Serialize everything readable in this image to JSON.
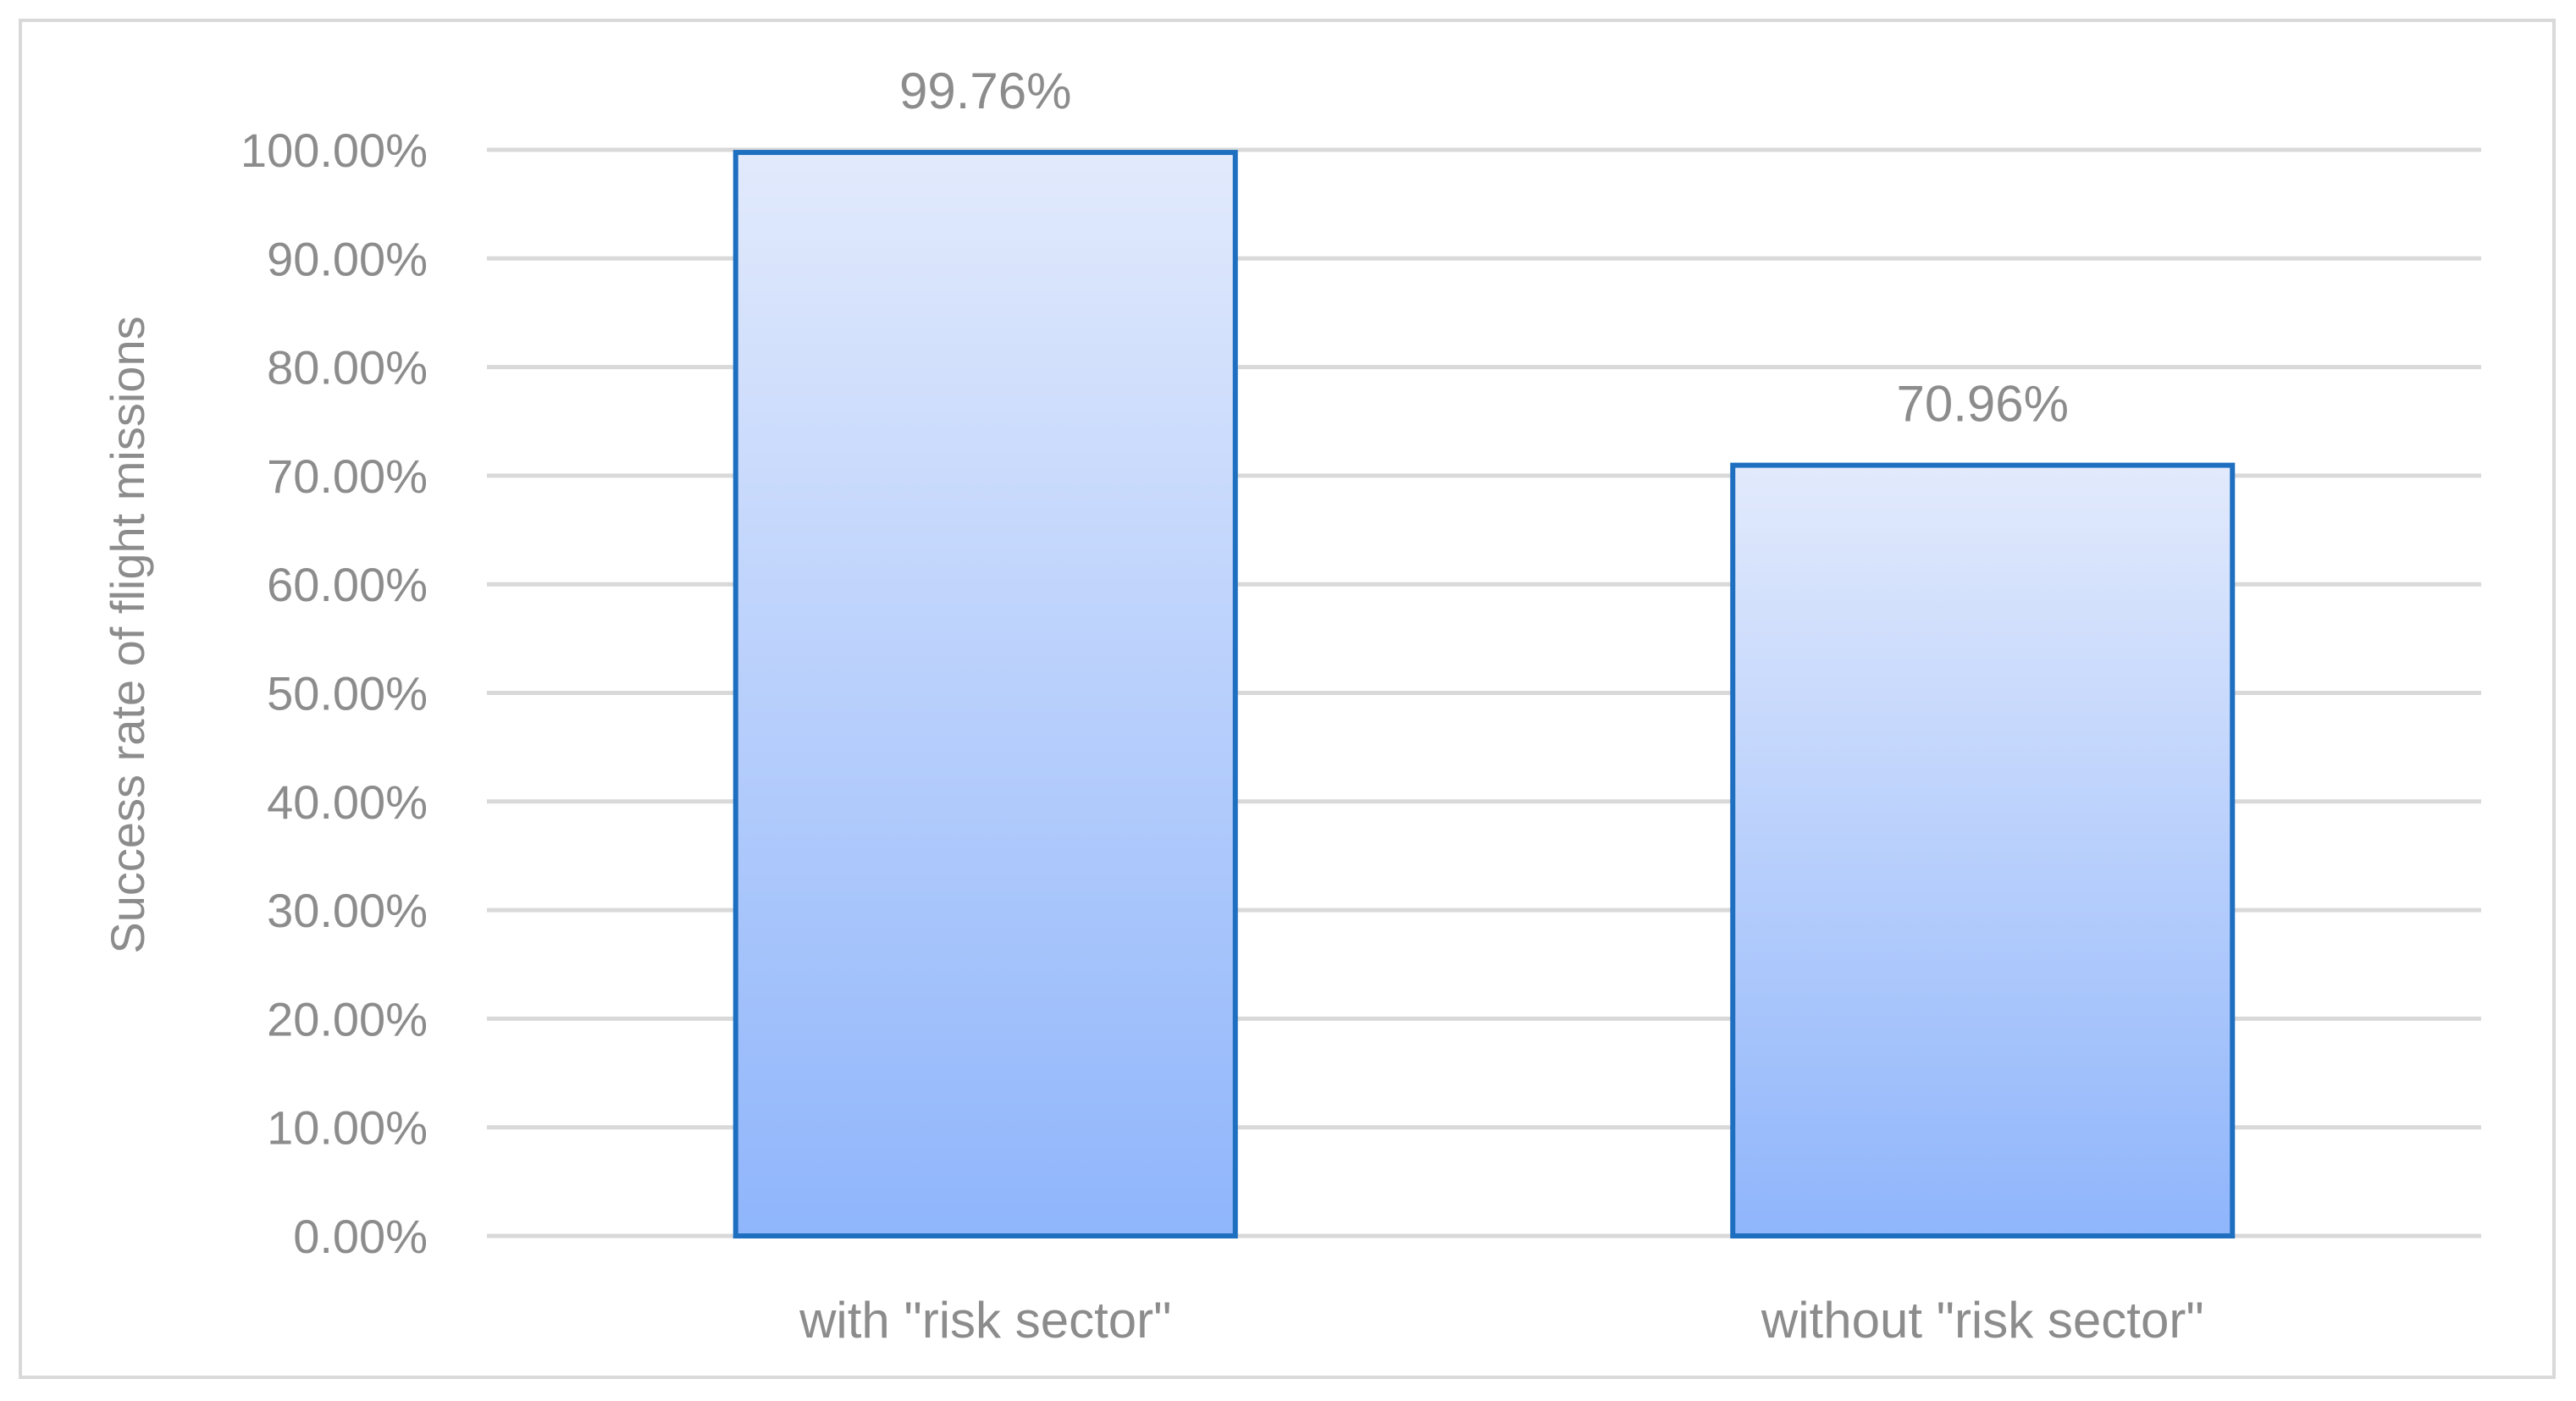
{
  "chart_data": {
    "type": "bar",
    "title": "",
    "xlabel": "",
    "ylabel": "Success rate of flight missions",
    "categories": [
      "with \"risk sector\"",
      "without \"risk sector\""
    ],
    "values": [
      99.76,
      70.96
    ],
    "data_labels": [
      "99.76%",
      "70.96%"
    ],
    "ylim": [
      0,
      100
    ],
    "yticks": [
      0,
      10,
      20,
      30,
      40,
      50,
      60,
      70,
      80,
      90,
      100
    ],
    "ytick_labels": [
      "0.00%",
      "10.00%",
      "20.00%",
      "30.00%",
      "40.00%",
      "50.00%",
      "60.00%",
      "70.00%",
      "80.00%",
      "90.00%",
      "100.00%"
    ],
    "grid": true,
    "legend": "none",
    "colors": {
      "bar_fill_top": "#e2eafc",
      "bar_fill_bottom": "#8fb5fb",
      "bar_outline": "#1f6fc0",
      "gridline": "#d9d9d9",
      "text": "#8c8c8c",
      "frame": "#d9d9d9"
    }
  }
}
